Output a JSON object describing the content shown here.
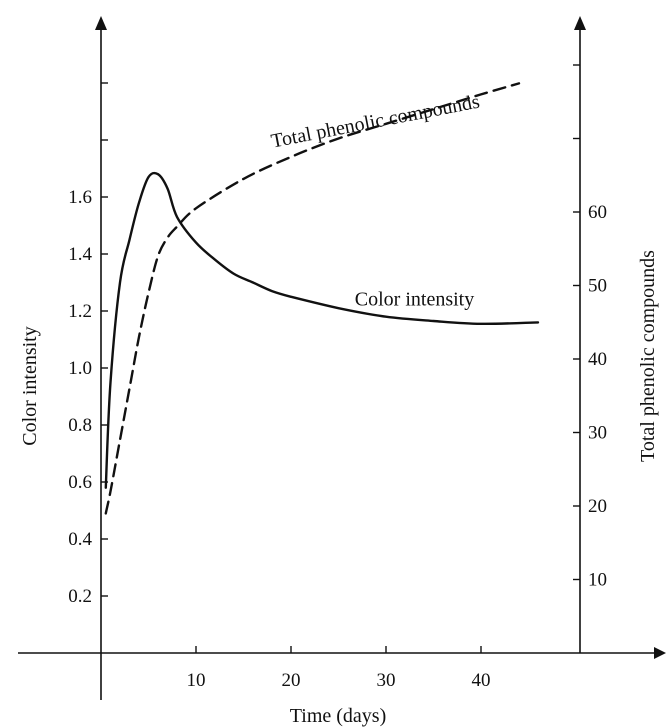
{
  "chart_data": {
    "type": "line",
    "xlabel": "Time (days)",
    "ylabel_left": "Color intensity",
    "ylabel_right": "Total phenolic compounds",
    "xlim": [
      0,
      50
    ],
    "ylim_left": [
      0,
      2.2
    ],
    "ylim_right": [
      0,
      75
    ],
    "x_ticks": [
      10,
      20,
      30,
      40
    ],
    "y_ticks_left": [
      0.2,
      0.4,
      0.6,
      0.8,
      1.0,
      1.2,
      1.4,
      1.6
    ],
    "y_ticks_left_labels": [
      "0.2",
      "0.4",
      "0.6",
      "0.8",
      "1.0",
      "1.2",
      "1.4",
      "1.6"
    ],
    "y_ticks_right": [
      10,
      20,
      30,
      40,
      50,
      60
    ],
    "series": [
      {
        "name": "Color intensity",
        "axis": "left",
        "style": "solid",
        "x": [
          0.5,
          1,
          2,
          3,
          4,
          5,
          6,
          7,
          8,
          10,
          12,
          14,
          16,
          18,
          20,
          25,
          30,
          35,
          40,
          46
        ],
        "y": [
          0.58,
          0.95,
          1.3,
          1.45,
          1.58,
          1.67,
          1.68,
          1.63,
          1.53,
          1.44,
          1.38,
          1.33,
          1.3,
          1.27,
          1.25,
          1.21,
          1.18,
          1.165,
          1.155,
          1.16
        ]
      },
      {
        "name": "Total phenolic compounds",
        "axis": "right",
        "style": "dashed",
        "x": [
          0.5,
          1,
          2,
          3,
          4,
          5,
          6,
          7,
          8,
          10,
          15,
          20,
          25,
          30,
          35,
          40,
          44
        ],
        "y": [
          19,
          22,
          29,
          36,
          43,
          49,
          54,
          56.5,
          58,
          60.5,
          64.5,
          67.5,
          70,
          72,
          74,
          76,
          77.5
        ]
      }
    ],
    "annotations": [
      {
        "text": "Total phenolic compounds",
        "x": 29,
        "y_right": 71.5,
        "rotate": -11
      },
      {
        "text": "Color intensity",
        "x": 33,
        "y_left": 1.22,
        "rotate": 0
      }
    ]
  }
}
